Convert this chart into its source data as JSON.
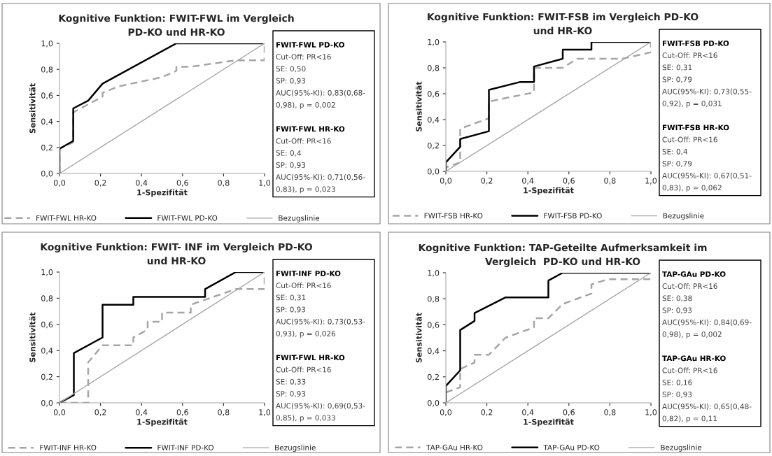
{
  "chart_data": [
    {
      "type": "line",
      "title": "Kognitive Funktion: FWIT-FWL im Vergleich\nPD-KO und HR-KO",
      "xlabel": "1-Spezifität",
      "ylabel": "Sensitivität",
      "xlim": [
        0,
        1
      ],
      "ylim": [
        0,
        1
      ],
      "xticks": [
        {
          "value": 0,
          "label": "0,0"
        },
        {
          "value": 0.2,
          "label": "0,2"
        },
        {
          "value": 0.4,
          "label": "0,4"
        },
        {
          "value": 0.6,
          "label": "0,6"
        },
        {
          "value": 0.8,
          "label": "0,8"
        },
        {
          "value": 1,
          "label": "1,0"
        }
      ],
      "yticks": [
        {
          "value": 0,
          "label": "0,0"
        },
        {
          "value": 0.2,
          "label": "0,2"
        },
        {
          "value": 0.4,
          "label": "0,4"
        },
        {
          "value": 0.6,
          "label": "0,6"
        },
        {
          "value": 0.8,
          "label": "0,8"
        },
        {
          "value": 1,
          "label": "1,0"
        }
      ],
      "grid": false,
      "legend": "bottom",
      "series": [
        {
          "name": "FWIT-FWL HR-KO",
          "color": "#a6a6a6",
          "line_style": "dashed",
          "x": [
            0,
            0,
            0.067,
            0.067,
            0.21,
            0.21,
            0.29,
            0.5,
            0.57,
            0.57,
            0.64,
            0.86,
            1,
            1
          ],
          "values": [
            0,
            0.19,
            0.24,
            0.47,
            0.59,
            0.62,
            0.67,
            0.74,
            0.79,
            0.82,
            0.82,
            0.87,
            0.87,
            1
          ]
        },
        {
          "name": "FWIT-FWL PD-KO",
          "color": "#000000",
          "line_style": "solid",
          "x": [
            0,
            0,
            0.067,
            0.067,
            0.14,
            0.21,
            0.57,
            1
          ],
          "values": [
            0,
            0.19,
            0.25,
            0.5,
            0.56,
            0.69,
            1,
            1
          ]
        },
        {
          "name": "Bezugslinie",
          "color": "#a6a6a6",
          "line_style": "solid",
          "x": [
            0,
            1
          ],
          "values": [
            0,
            1
          ]
        }
      ],
      "annotations": [
        "FWIT-FWL PD-KO\nCut-Off: PR<16\nSE: 0,50\nSP: 0,93\nAUC(95%-KI): 0,83(0,68-\n0,98), p = 0,002",
        "FWIT-FWL HR-KO\nCut-Off: PR<16\nSE: 0,4\nSP: 0,93\nAUC(95%-KI): 0,71(0,56-\n0,83), p = 0,023"
      ]
    },
    {
      "type": "line",
      "title": "Kognitive Funktion: FWIT-FSB im Vergleich PD-KO\nund HR-KO",
      "xlabel": "1-Spezifität",
      "ylabel": "Sensitivität",
      "xlim": [
        0,
        1
      ],
      "ylim": [
        0,
        1
      ],
      "xticks": [
        {
          "value": 0,
          "label": "0,0"
        },
        {
          "value": 0.2,
          "label": "0,2"
        },
        {
          "value": 0.4,
          "label": "0,4"
        },
        {
          "value": 0.6,
          "label": "0,6"
        },
        {
          "value": 0.8,
          "label": "0,8"
        },
        {
          "value": 1,
          "label": "1,0"
        }
      ],
      "yticks": [
        {
          "value": 0,
          "label": "0,0"
        },
        {
          "value": 0.2,
          "label": "0,2"
        },
        {
          "value": 0.4,
          "label": "0,4"
        },
        {
          "value": 0.6,
          "label": "0,6"
        },
        {
          "value": 0.8,
          "label": "0,8"
        },
        {
          "value": 1,
          "label": "1,0"
        }
      ],
      "grid": false,
      "legend": "bottom",
      "series": [
        {
          "name": "FWIT-FSB HR-KO",
          "color": "#a6a6a6",
          "line_style": "dashed",
          "x": [
            0,
            0,
            0.07,
            0.07,
            0.21,
            0.21,
            0.43,
            0.43,
            0.57,
            0.64,
            0.86,
            1,
            1
          ],
          "values": [
            0,
            0.03,
            0.07,
            0.33,
            0.41,
            0.54,
            0.61,
            0.8,
            0.8,
            0.87,
            0.87,
            0.92,
            1
          ]
        },
        {
          "name": "FWIT-FSB PD-KO",
          "color": "#000000",
          "line_style": "solid",
          "x": [
            0,
            0,
            0.07,
            0.07,
            0.21,
            0.21,
            0.36,
            0.43,
            0.43,
            0.57,
            0.57,
            0.71,
            0.71,
            1
          ],
          "values": [
            0,
            0.07,
            0.19,
            0.25,
            0.31,
            0.63,
            0.69,
            0.69,
            0.81,
            0.87,
            0.94,
            0.94,
            1,
            1
          ]
        },
        {
          "name": "Bezugslinie",
          "color": "#a6a6a6",
          "line_style": "solid",
          "x": [
            0,
            1
          ],
          "values": [
            0,
            1
          ]
        }
      ],
      "annotations": [
        "FWIT-FSB PD-KO\nCut-Off: PR<16\nSE: 0,31\nSP: 0,79\nAUC(95%-KI): 0,73(0,55-\n0,92), p = 0,031",
        "FWIT-FSB HR-KO\nCut-Off: PR<16\nSE: 0,4\nSP: 0,79\nAUC(95%-KI): 0,67(0,51-\n0,83), p = 0,062"
      ]
    },
    {
      "type": "line",
      "title": "Kognitive Funktion: FWIT- INF im Vergleich PD-KO\nund HR-KO",
      "xlabel": "1-Spezifität",
      "ylabel": "Sensitivität",
      "xlim": [
        0,
        1
      ],
      "ylim": [
        0,
        1
      ],
      "xticks": [
        {
          "value": 0,
          "label": "0,0"
        },
        {
          "value": 0.2,
          "label": "0,2"
        },
        {
          "value": 0.4,
          "label": "0,4"
        },
        {
          "value": 0.6,
          "label": "0,6"
        },
        {
          "value": 0.8,
          "label": "0,8"
        },
        {
          "value": 1,
          "label": "1,0"
        }
      ],
      "yticks": [
        {
          "value": 0,
          "label": "0,0"
        },
        {
          "value": 0.2,
          "label": "0,2"
        },
        {
          "value": 0.4,
          "label": "0,4"
        },
        {
          "value": 0.6,
          "label": "0,6"
        },
        {
          "value": 0.8,
          "label": "0,8"
        },
        {
          "value": 1,
          "label": "1,0"
        }
      ],
      "grid": false,
      "legend": "bottom",
      "series": [
        {
          "name": "FWIT-INF HR-KO",
          "color": "#a6a6a6",
          "line_style": "dashed",
          "x": [
            0,
            0.14,
            0.14,
            0.21,
            0.36,
            0.36,
            0.43,
            0.43,
            0.5,
            0.5,
            0.64,
            0.64,
            0.86,
            1,
            1
          ],
          "values": [
            0,
            0,
            0.31,
            0.44,
            0.44,
            0.5,
            0.56,
            0.62,
            0.62,
            0.69,
            0.69,
            0.75,
            0.87,
            0.87,
            1
          ]
        },
        {
          "name": "FWIT-INF PD-KO",
          "color": "#000000",
          "line_style": "solid",
          "x": [
            0,
            0.07,
            0.07,
            0.21,
            0.21,
            0.36,
            0.36,
            0.71,
            0.71,
            0.86,
            1
          ],
          "values": [
            0,
            0.06,
            0.38,
            0.5,
            0.75,
            0.75,
            0.81,
            0.81,
            0.87,
            1,
            1
          ]
        },
        {
          "name": "Bezugslinie",
          "color": "#a6a6a6",
          "line_style": "solid",
          "x": [
            0,
            1
          ],
          "values": [
            0,
            1
          ]
        }
      ],
      "annotations": [
        "FWIT-INF PD-KO\nCut-Off: PR<16\nSE: 0,31\nSP: 0,93\nAUC(95%-KI): 0,73(0,53-\n0,93), p = 0,026",
        "FWIT-FWL HR-KO\nCut-Off: PR<16\nSE: 0,33\nSP: 0,93\nAUC(95%-KI): 0,69(0,53-\n0,85), p = 0,033"
      ]
    },
    {
      "type": "line",
      "title": "Kognitive Funktion: TAP-Geteilte Aufmerksamkeit im\nVergleich  PD-KO und HR-KO",
      "xlabel": "1-Spezifität",
      "ylabel": "Sensitivität",
      "xlim": [
        0,
        1
      ],
      "ylim": [
        0,
        1
      ],
      "xticks": [
        {
          "value": 0,
          "label": "0,0"
        },
        {
          "value": 0.2,
          "label": "0,2"
        },
        {
          "value": 0.4,
          "label": "0,4"
        },
        {
          "value": 0.6,
          "label": "0,6"
        },
        {
          "value": 0.8,
          "label": "0,8"
        },
        {
          "value": 1,
          "label": "1,0"
        }
      ],
      "yticks": [
        {
          "value": 0,
          "label": "0,0"
        },
        {
          "value": 0.2,
          "label": "0,2"
        },
        {
          "value": 0.4,
          "label": "0,4"
        },
        {
          "value": 0.6,
          "label": "0,6"
        },
        {
          "value": 0.8,
          "label": "0,8"
        },
        {
          "value": 1,
          "label": "1,0"
        }
      ],
      "grid": false,
      "legend": "bottom",
      "series": [
        {
          "name": "TAP-GAu HR-KO",
          "color": "#a6a6a6",
          "line_style": "dashed",
          "x": [
            0,
            0.07,
            0.07,
            0.14,
            0.14,
            0.21,
            0.29,
            0.43,
            0.43,
            0.5,
            0.57,
            0.71,
            0.71,
            0.79,
            1,
            1
          ],
          "values": [
            0.08,
            0.12,
            0.26,
            0.31,
            0.37,
            0.37,
            0.5,
            0.58,
            0.65,
            0.65,
            0.76,
            0.84,
            0.91,
            0.95,
            0.95,
            0.98
          ]
        },
        {
          "name": "TAP-GAu PD-KO",
          "color": "#000000",
          "line_style": "solid",
          "x": [
            0,
            0,
            0.07,
            0.07,
            0.14,
            0.14,
            0.29,
            0.5,
            0.5,
            0.57,
            1
          ],
          "values": [
            0,
            0.13,
            0.25,
            0.56,
            0.63,
            0.69,
            0.81,
            0.81,
            0.94,
            1,
            1
          ]
        },
        {
          "name": "Bezugslinie",
          "color": "#a6a6a6",
          "line_style": "solid",
          "x": [
            0,
            1
          ],
          "values": [
            0,
            1
          ]
        }
      ],
      "annotations": [
        "TAP-GAu PD-KO\nCut-Off: PR<16\nSE: 0,38\nSP: 0,93\nAUC(95%-KI): 0,84(0,69-\n0,98), p = 0,002",
        "TAP-GAu HR-KO\nCut-Off: PR<16\nSE: 0,16\nSP: 0,93\nAUC(95%-KI): 0,65(0,48-\n0,82), p = 0,11"
      ]
    }
  ]
}
